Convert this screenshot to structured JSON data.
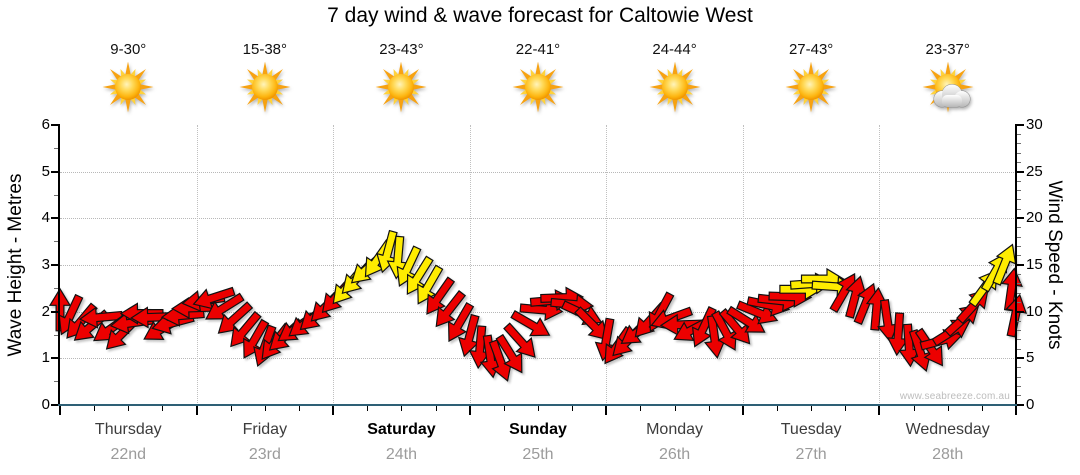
{
  "title": "7 day wind & wave forecast for Caltowie West",
  "watermark": "www.seabreeze.com.au",
  "left_axis": {
    "label": "Wave Height - Metres",
    "ticks": [
      0,
      1,
      2,
      3,
      4,
      5,
      6
    ],
    "max": 6
  },
  "right_axis": {
    "label": "Wind Speed - Knots",
    "ticks": [
      0,
      5,
      10,
      15,
      20,
      25,
      30
    ],
    "max": 30
  },
  "days": [
    {
      "name": "Thursday",
      "date": "22nd",
      "temp": "9-30°",
      "icon": "sun",
      "bold": false
    },
    {
      "name": "Friday",
      "date": "23rd",
      "temp": "15-38°",
      "icon": "sun",
      "bold": false
    },
    {
      "name": "Saturday",
      "date": "24th",
      "temp": "23-43°",
      "icon": "sun",
      "bold": true
    },
    {
      "name": "Sunday",
      "date": "25th",
      "temp": "22-41°",
      "icon": "sun",
      "bold": true
    },
    {
      "name": "Monday",
      "date": "26th",
      "temp": "24-44°",
      "icon": "sun",
      "bold": false
    },
    {
      "name": "Tuesday",
      "date": "27th",
      "temp": "27-43°",
      "icon": "sun",
      "bold": false
    },
    {
      "name": "Wednesday",
      "date": "28th",
      "temp": "23-37°",
      "icon": "sun-cloud",
      "bold": false
    }
  ],
  "colors": {
    "arrow_red": "#ec0000",
    "arrow_yellow": "#ffec00",
    "arrow_outline": "#111111",
    "bottom_axis": "#2e6076",
    "grid": "#b8b8b8",
    "date_gray": "#9b9b9b",
    "watermark_gray": "#bdbdbd"
  },
  "chart_data": {
    "type": "wind-arrows",
    "x_unit": "hours_from_thursday_00",
    "x_range": [
      0,
      168
    ],
    "left_ylim_metres": [
      0,
      6
    ],
    "right_ylim_knots": [
      0,
      30
    ],
    "grid": "dotted horizontal at 1-5 m, dotted vertical at day boundaries",
    "arrows_format": [
      "t_hours",
      "wind_speed_knots",
      "direction_deg_cw_0_is_up",
      "color r=red y=yellow"
    ],
    "arrows": [
      [
        0,
        10.2,
        0,
        "r"
      ],
      [
        1.8,
        9.6,
        205,
        "r"
      ],
      [
        3.6,
        8.9,
        220,
        "r"
      ],
      [
        5.4,
        8.4,
        230,
        "r"
      ],
      [
        7.2,
        9.4,
        265,
        "r"
      ],
      [
        9,
        8.2,
        235,
        "r"
      ],
      [
        10.8,
        7.6,
        225,
        "r"
      ],
      [
        12.6,
        8.8,
        262,
        "r"
      ],
      [
        14.4,
        9.8,
        270,
        "r"
      ],
      [
        16.2,
        9.4,
        268,
        "r"
      ],
      [
        18,
        8.2,
        240,
        "r"
      ],
      [
        19.8,
        8.8,
        255,
        "r"
      ],
      [
        21.6,
        9.6,
        265,
        "r"
      ],
      [
        23.4,
        10.4,
        268,
        "r"
      ],
      [
        25.2,
        11.2,
        262,
        "r"
      ],
      [
        27,
        11.5,
        252,
        "r"
      ],
      [
        28.8,
        10.4,
        238,
        "r"
      ],
      [
        30.6,
        9.2,
        228,
        "r"
      ],
      [
        32.4,
        8.0,
        220,
        "r"
      ],
      [
        34.2,
        7.0,
        210,
        "r"
      ],
      [
        36,
        6.3,
        200,
        "r"
      ],
      [
        37.8,
        6.7,
        218,
        "r"
      ],
      [
        39.6,
        7.4,
        228,
        "r"
      ],
      [
        41.4,
        8.2,
        235,
        "r"
      ],
      [
        43.2,
        8.8,
        232,
        "r"
      ],
      [
        45,
        9.6,
        228,
        "r"
      ],
      [
        46.8,
        10.6,
        225,
        "r"
      ],
      [
        48.6,
        11.6,
        222,
        "r"
      ],
      [
        50.4,
        12.6,
        220,
        "y"
      ],
      [
        52.2,
        13.6,
        224,
        "y"
      ],
      [
        54,
        14.6,
        228,
        "y"
      ],
      [
        55.8,
        15.6,
        215,
        "y"
      ],
      [
        57.6,
        16.4,
        195,
        "y"
      ],
      [
        59.4,
        15.8,
        185,
        "y"
      ],
      [
        61.2,
        14.8,
        205,
        "y"
      ],
      [
        63,
        13.8,
        212,
        "y"
      ],
      [
        64.8,
        12.8,
        210,
        "y"
      ],
      [
        66.6,
        11.6,
        215,
        "r"
      ],
      [
        68.4,
        10.2,
        218,
        "r"
      ],
      [
        70.2,
        8.8,
        210,
        "r"
      ],
      [
        72,
        7.4,
        195,
        "r"
      ],
      [
        73.8,
        6.2,
        185,
        "r"
      ],
      [
        75.6,
        5.2,
        172,
        "r"
      ],
      [
        77.4,
        4.7,
        160,
        "r"
      ],
      [
        79.2,
        5.4,
        148,
        "r"
      ],
      [
        81,
        6.8,
        138,
        "r"
      ],
      [
        82.8,
        8.6,
        120,
        "r"
      ],
      [
        84.6,
        10.2,
        95,
        "r"
      ],
      [
        86.4,
        11.2,
        85,
        "r"
      ],
      [
        88.2,
        11.5,
        88,
        "r"
      ],
      [
        90,
        10.8,
        95,
        "r"
      ],
      [
        91.8,
        9.8,
        115,
        "r"
      ],
      [
        93.6,
        8.6,
        135,
        "r"
      ],
      [
        96,
        7.0,
        190,
        "r"
      ],
      [
        97.9,
        6.3,
        215,
        "r"
      ],
      [
        99.8,
        6.9,
        225,
        "r"
      ],
      [
        101.7,
        7.9,
        235,
        "r"
      ],
      [
        103.6,
        9.0,
        222,
        "r"
      ],
      [
        105.5,
        9.9,
        208,
        "r"
      ],
      [
        107.4,
        9.3,
        250,
        "r"
      ],
      [
        109.3,
        8.6,
        268,
        "r"
      ],
      [
        111.2,
        8.1,
        242,
        "r"
      ],
      [
        113.1,
        8.3,
        205,
        "r"
      ],
      [
        115,
        7.3,
        172,
        "r"
      ],
      [
        116.9,
        7.9,
        152,
        "r"
      ],
      [
        118.8,
        8.3,
        140,
        "r"
      ],
      [
        120.7,
        9.0,
        122,
        "r"
      ],
      [
        122.6,
        9.9,
        112,
        "r"
      ],
      [
        124.5,
        10.7,
        102,
        "r"
      ],
      [
        126.4,
        11.2,
        96,
        "r"
      ],
      [
        128.3,
        11.6,
        92,
        "r"
      ],
      [
        130.2,
        12.4,
        90,
        "y"
      ],
      [
        132.1,
        13.0,
        86,
        "y"
      ],
      [
        134,
        13.5,
        90,
        "y"
      ],
      [
        135.9,
        12.7,
        94,
        "y"
      ],
      [
        137.8,
        12.1,
        30,
        "r"
      ],
      [
        139.7,
        11.6,
        15,
        "r"
      ],
      [
        141.6,
        10.9,
        22,
        "r"
      ],
      [
        143.5,
        10.3,
        5,
        "r"
      ],
      [
        145.4,
        9.0,
        172,
        "r"
      ],
      [
        147.3,
        7.6,
        184,
        "r"
      ],
      [
        149.2,
        6.4,
        176,
        "r"
      ],
      [
        151.1,
        5.8,
        162,
        "r"
      ],
      [
        153,
        6.1,
        146,
        "r"
      ],
      [
        154.9,
        6.9,
        75,
        "r"
      ],
      [
        156.8,
        7.9,
        58,
        "r"
      ],
      [
        158.7,
        9.2,
        48,
        "r"
      ],
      [
        160.6,
        10.7,
        42,
        "r"
      ],
      [
        162.5,
        12.6,
        36,
        "y"
      ],
      [
        164.4,
        14.3,
        30,
        "y"
      ],
      [
        166,
        15.1,
        22,
        "y"
      ],
      [
        167.2,
        12.4,
        8,
        "r"
      ],
      [
        167.9,
        9.6,
        12,
        "r"
      ]
    ]
  }
}
